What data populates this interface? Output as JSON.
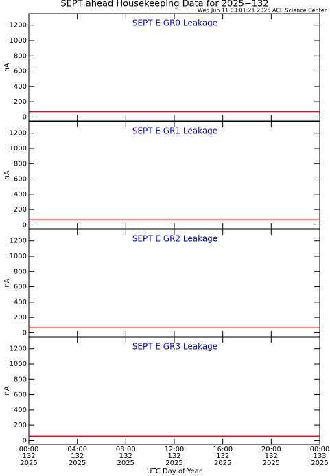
{
  "header": {
    "title": "SEPT ahead Housekeeping Data for 2025−132",
    "subtitle": "Wed Jun 11 03:01:21 2025 ACE Science Center"
  },
  "chart_data": [
    {
      "type": "line",
      "title": "SEPT E GR0 Leakage",
      "y_label": "nA",
      "ylim": [
        -50,
        1350
      ],
      "yticks": [
        0,
        200,
        400,
        600,
        800,
        1000,
        1200
      ],
      "xlim": [
        0,
        24
      ],
      "series": [
        {
          "color": "#ff0000",
          "x": [
            0,
            24
          ],
          "values": [
            70,
            70
          ]
        }
      ]
    },
    {
      "type": "line",
      "title": "SEPT E GR1 Leakage",
      "y_label": "nA",
      "ylim": [
        -50,
        1350
      ],
      "yticks": [
        0,
        200,
        400,
        600,
        800,
        1000,
        1200
      ],
      "xlim": [
        0,
        24
      ],
      "series": [
        {
          "color": "#ff0000",
          "x": [
            0,
            24
          ],
          "values": [
            65,
            65
          ]
        }
      ]
    },
    {
      "type": "line",
      "title": "SEPT E GR2 Leakage",
      "y_label": "nA",
      "ylim": [
        -50,
        1350
      ],
      "yticks": [
        0,
        200,
        400,
        600,
        800,
        1000,
        1200
      ],
      "xlim": [
        0,
        24
      ],
      "series": [
        {
          "color": "#ff0000",
          "x": [
            0,
            24
          ],
          "values": [
            65,
            65
          ]
        }
      ]
    },
    {
      "type": "line",
      "title": "SEPT E GR3 Leakage",
      "y_label": "nA",
      "ylim": [
        -50,
        1350
      ],
      "yticks": [
        0,
        200,
        400,
        600,
        800,
        1000,
        1200
      ],
      "xlim": [
        0,
        24
      ],
      "x_label": "UTC Day of Year",
      "xticks": [
        {
          "value": 0,
          "label": "00:00\n132\n2025"
        },
        {
          "value": 4,
          "label": "04:00\n132\n2025"
        },
        {
          "value": 8,
          "label": "08:00\n132\n2025"
        },
        {
          "value": 12,
          "label": "12:00\n132\n2025"
        },
        {
          "value": 16,
          "label": "16:00\n132\n2025"
        },
        {
          "value": 20,
          "label": "20:00\n132\n2025"
        },
        {
          "value": 24,
          "label": "00:00\n133\n2025"
        }
      ],
      "series": [
        {
          "color": "#ff0000",
          "x": [
            0,
            24
          ],
          "values": [
            55,
            55
          ]
        }
      ]
    }
  ]
}
